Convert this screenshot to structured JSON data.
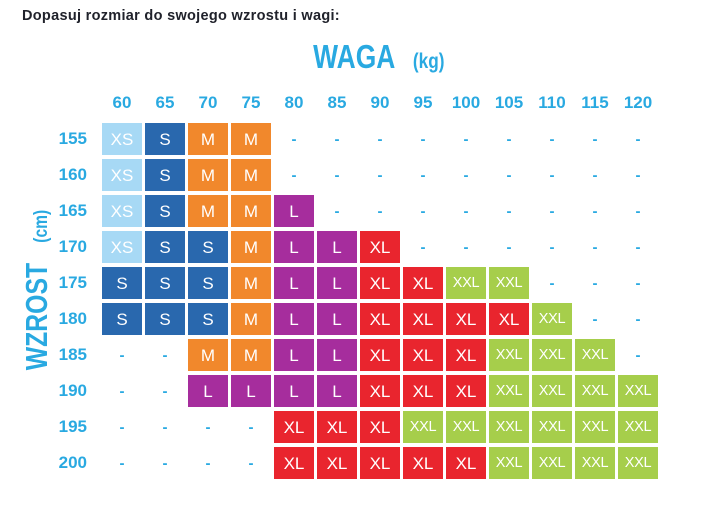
{
  "title": "Dopasuj rozmiar do swojego wzrostu i wagi:",
  "x_axis": {
    "label": "WAGA",
    "unit": "(kg)"
  },
  "y_axis": {
    "label": "WZROST",
    "unit": "(cm)"
  },
  "empty_marker": "-",
  "colors": {
    "accent_blue": "#29a9e1",
    "title_text": "#20222b",
    "cell_text": "#ffffff"
  },
  "size_colors": {
    "XS": "#a7d9f5",
    "S": "#2968ae",
    "M": "#f1882c",
    "L": "#a62d9d",
    "XL": "#e9252e",
    "XXL": "#a6ce4b"
  },
  "chart_data": {
    "type": "heatmap",
    "title": "Dopasuj rozmiar do swojego wzrostu i wagi:",
    "xlabel": "WAGA (kg)",
    "ylabel": "WZROST (cm)",
    "x": [
      "60",
      "65",
      "70",
      "75",
      "80",
      "85",
      "90",
      "95",
      "100",
      "105",
      "110",
      "115",
      "120"
    ],
    "y": [
      "155",
      "160",
      "165",
      "170",
      "175",
      "180",
      "185",
      "190",
      "195",
      "200"
    ],
    "legend": [
      "XS",
      "S",
      "M",
      "L",
      "XL",
      "XXL"
    ],
    "values": [
      [
        "XS",
        "S",
        "M",
        "M",
        "-",
        "-",
        "-",
        "-",
        "-",
        "-",
        "-",
        "-",
        "-"
      ],
      [
        "XS",
        "S",
        "M",
        "M",
        "-",
        "-",
        "-",
        "-",
        "-",
        "-",
        "-",
        "-",
        "-"
      ],
      [
        "XS",
        "S",
        "M",
        "M",
        "L",
        "-",
        "-",
        "-",
        "-",
        "-",
        "-",
        "-",
        "-"
      ],
      [
        "XS",
        "S",
        "S",
        "M",
        "L",
        "L",
        "XL",
        "-",
        "-",
        "-",
        "-",
        "-",
        "-"
      ],
      [
        "S",
        "S",
        "S",
        "M",
        "L",
        "L",
        "XL",
        "XL",
        "XXL",
        "XXL",
        "-",
        "-",
        "-"
      ],
      [
        "S",
        "S",
        "S",
        "M",
        "L",
        "L",
        "XL",
        "XL",
        "XL",
        "XL",
        "XXL",
        "-",
        "-"
      ],
      [
        "-",
        "-",
        "M",
        "M",
        "L",
        "L",
        "XL",
        "XL",
        "XL",
        "XXL",
        "XXL",
        "XXL",
        "-"
      ],
      [
        "-",
        "-",
        "L",
        "L",
        "L",
        "L",
        "XL",
        "XL",
        "XL",
        "XXL",
        "XXL",
        "XXL",
        "XXL"
      ],
      [
        "-",
        "-",
        "-",
        "-",
        "XL",
        "XL",
        "XL",
        "XXL",
        "XXL",
        "XXL",
        "XXL",
        "XXL",
        "XXL"
      ],
      [
        "-",
        "-",
        "-",
        "-",
        "XL",
        "XL",
        "XL",
        "XL",
        "XL",
        "XXL",
        "XXL",
        "XXL",
        "XXL"
      ]
    ]
  }
}
